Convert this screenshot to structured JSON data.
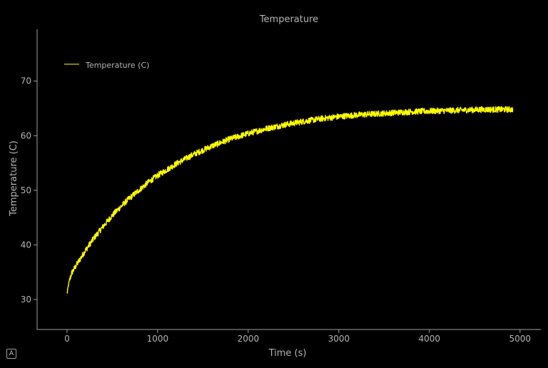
{
  "chart_data": {
    "type": "line",
    "title": "Temperature",
    "xlabel": "Time (s)",
    "ylabel": "Temperature (C)",
    "xlim": [
      -330,
      5230
    ],
    "ylim": [
      24.5,
      79.5
    ],
    "xticks": [
      0,
      1000,
      2000,
      3000,
      4000,
      5000
    ],
    "yticks": [
      30,
      40,
      50,
      60,
      70
    ],
    "grid": false,
    "legend_position": "top-left",
    "series": [
      {
        "name": "Temperature (C)",
        "color": "#ffff00",
        "x_range": [
          0,
          4920
        ],
        "points": [
          [
            0,
            31.0
          ],
          [
            20,
            33.0
          ],
          [
            50,
            34.8
          ],
          [
            100,
            36.2
          ],
          [
            200,
            38.9
          ],
          [
            300,
            41.3
          ],
          [
            400,
            43.4
          ],
          [
            500,
            45.4
          ],
          [
            600,
            47.1
          ],
          [
            700,
            48.7
          ],
          [
            800,
            50.1
          ],
          [
            900,
            51.5
          ],
          [
            1000,
            52.7
          ],
          [
            1200,
            54.8
          ],
          [
            1400,
            56.6
          ],
          [
            1600,
            58.1
          ],
          [
            1800,
            59.4
          ],
          [
            2000,
            60.4
          ],
          [
            2200,
            61.3
          ],
          [
            2400,
            62.0
          ],
          [
            2600,
            62.6
          ],
          [
            2800,
            63.1
          ],
          [
            3000,
            63.5
          ],
          [
            3200,
            63.8
          ],
          [
            3400,
            64.0
          ],
          [
            3600,
            64.2
          ],
          [
            3800,
            64.4
          ],
          [
            4000,
            64.5
          ],
          [
            4200,
            64.6
          ],
          [
            4400,
            64.7
          ],
          [
            4600,
            64.8
          ],
          [
            4800,
            64.8
          ],
          [
            4920,
            64.8
          ]
        ]
      }
    ]
  },
  "ui": {
    "auto_button_label": "A"
  }
}
